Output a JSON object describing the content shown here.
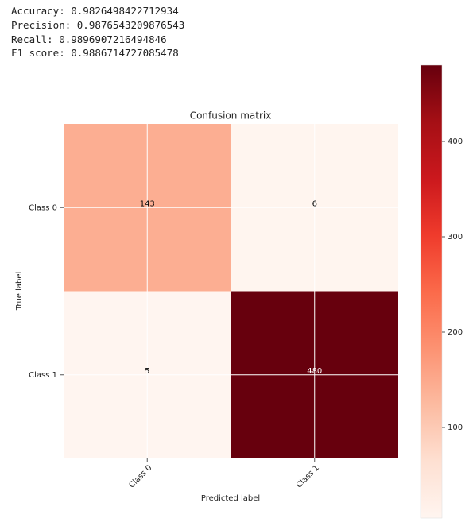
{
  "lines": [
    "Accuracy: 0.9826498422712934",
    "Precision: 0.9876543209876543",
    "Recall: 0.9896907216494846",
    "F1 score: 0.9886714727085478"
  ],
  "chart_data": {
    "type": "heatmap",
    "title": "Confusion matrix",
    "x_label": "Predicted label",
    "y_label": "True label",
    "x_categories": [
      "Class 0",
      "Class 1"
    ],
    "y_categories": [
      "Class 0",
      "Class 1"
    ],
    "values": [
      [
        143,
        6
      ],
      [
        5,
        480
      ]
    ],
    "colormap": [
      "#fff5f0",
      "#fee0d2",
      "#fcbba1",
      "#fc9272",
      "#fb6a4a",
      "#ef3b2c",
      "#cb181d",
      "#a50f15",
      "#67000d"
    ],
    "clim": [
      5,
      480
    ],
    "cticks": [
      100,
      200,
      300,
      400
    ],
    "grid": true
  }
}
